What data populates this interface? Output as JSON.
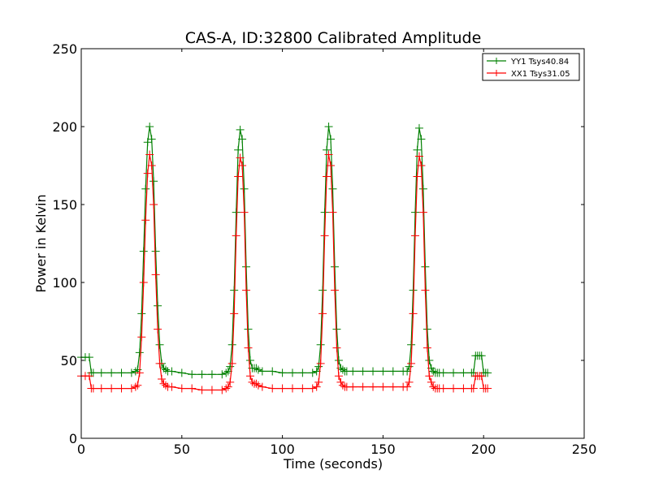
{
  "chart_data": {
    "type": "line",
    "title": "CAS-A, ID:32800 Calibrated Amplitude",
    "xlabel": "Time (seconds)",
    "ylabel": "Power in Kelvin",
    "xlim": [
      0,
      250
    ],
    "ylim": [
      0,
      250
    ],
    "x_ticks": [
      "0",
      "50",
      "100",
      "150",
      "200",
      "250"
    ],
    "y_ticks": [
      "0",
      "50",
      "100",
      "150",
      "200",
      "250"
    ],
    "grid": false,
    "legend_position": "top-right",
    "marker": "+",
    "series": [
      {
        "name": "YY1 Tsys40.84",
        "color": "#008000",
        "x": [
          0,
          2,
          4,
          5,
          6,
          10,
          15,
          20,
          25,
          27,
          28,
          29,
          30,
          31,
          32,
          33,
          34,
          35,
          36,
          37,
          38,
          39,
          40,
          41,
          42,
          43,
          45,
          50,
          55,
          60,
          65,
          70,
          72,
          73,
          74,
          75,
          76,
          77,
          78,
          79,
          80,
          81,
          82,
          83,
          84,
          85,
          86,
          87,
          88,
          90,
          95,
          100,
          105,
          110,
          115,
          117,
          118,
          119,
          120,
          121,
          122,
          123,
          124,
          125,
          126,
          127,
          128,
          129,
          130,
          131,
          132,
          135,
          140,
          145,
          150,
          155,
          160,
          162,
          163,
          164,
          165,
          166,
          167,
          168,
          169,
          170,
          171,
          172,
          173,
          174,
          175,
          176,
          177,
          178,
          180,
          185,
          190,
          194,
          195,
          196,
          197,
          198,
          199,
          200,
          201,
          202
        ],
        "y": [
          52,
          52,
          52,
          42,
          42,
          42,
          42,
          42,
          42,
          43,
          44,
          55,
          80,
          120,
          160,
          190,
          200,
          192,
          165,
          120,
          85,
          60,
          48,
          45,
          44,
          43,
          43,
          42,
          41,
          41,
          41,
          41,
          42,
          43,
          46,
          60,
          95,
          145,
          185,
          198,
          192,
          160,
          110,
          70,
          50,
          45,
          45,
          45,
          44,
          43,
          43,
          42,
          42,
          42,
          42,
          43,
          46,
          60,
          95,
          145,
          185,
          200,
          192,
          160,
          110,
          70,
          50,
          45,
          44,
          43,
          43,
          43,
          43,
          43,
          43,
          43,
          43,
          43,
          46,
          60,
          95,
          145,
          185,
          199,
          192,
          160,
          110,
          70,
          50,
          45,
          43,
          42,
          42,
          42,
          42,
          42,
          42,
          42,
          42,
          53,
          53,
          53,
          53,
          42,
          42,
          42
        ]
      },
      {
        "name": "XX1 Tsys31.05",
        "color": "#ff0000",
        "x": [
          0,
          2,
          4,
          5,
          6,
          10,
          15,
          20,
          25,
          27,
          28,
          29,
          30,
          31,
          32,
          33,
          34,
          35,
          36,
          37,
          38,
          39,
          40,
          41,
          42,
          43,
          45,
          50,
          55,
          60,
          65,
          70,
          72,
          73,
          74,
          75,
          76,
          77,
          78,
          79,
          80,
          81,
          82,
          83,
          84,
          85,
          86,
          87,
          88,
          90,
          95,
          100,
          105,
          110,
          115,
          117,
          118,
          119,
          120,
          121,
          122,
          123,
          124,
          125,
          126,
          127,
          128,
          129,
          130,
          131,
          132,
          135,
          140,
          145,
          150,
          155,
          160,
          162,
          163,
          164,
          165,
          166,
          167,
          168,
          169,
          170,
          171,
          172,
          173,
          174,
          175,
          176,
          177,
          178,
          180,
          185,
          190,
          194,
          195,
          196,
          197,
          198,
          199,
          200,
          201,
          202
        ],
        "y": [
          40,
          40,
          40,
          32,
          32,
          32,
          32,
          32,
          32,
          33,
          34,
          42,
          65,
          100,
          140,
          170,
          182,
          175,
          150,
          105,
          70,
          48,
          38,
          35,
          34,
          33,
          33,
          32,
          32,
          31,
          31,
          31,
          32,
          33,
          36,
          48,
          80,
          130,
          168,
          180,
          175,
          145,
          95,
          58,
          40,
          36,
          35,
          35,
          34,
          33,
          32,
          32,
          32,
          32,
          32,
          33,
          36,
          48,
          80,
          130,
          168,
          182,
          175,
          145,
          95,
          58,
          40,
          36,
          34,
          33,
          33,
          33,
          33,
          33,
          33,
          33,
          33,
          33,
          36,
          48,
          80,
          130,
          168,
          181,
          175,
          145,
          95,
          58,
          40,
          36,
          33,
          32,
          32,
          32,
          32,
          32,
          32,
          32,
          32,
          40,
          40,
          40,
          40,
          32,
          32,
          32
        ]
      }
    ]
  }
}
